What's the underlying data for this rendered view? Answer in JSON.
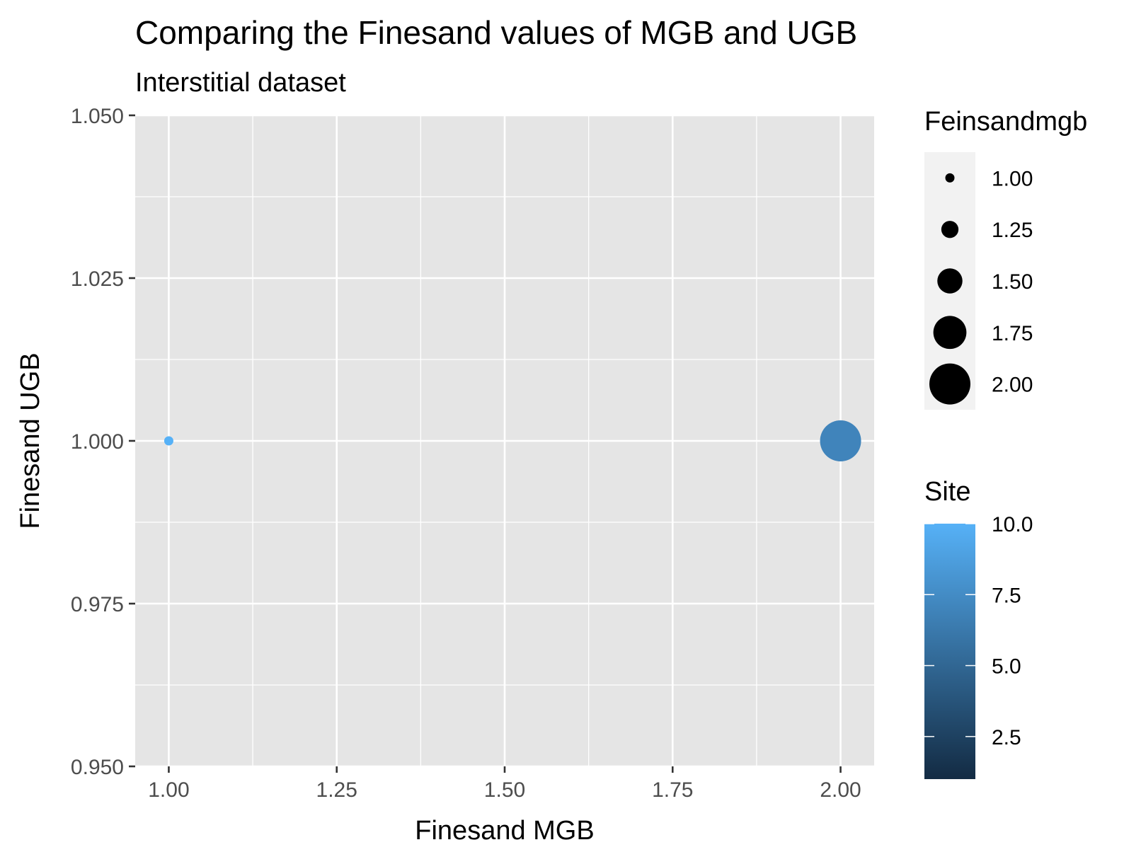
{
  "chart_data": {
    "type": "scatter",
    "title": "Comparing the Finesand values of MGB and UGB",
    "subtitle": "Interstitial dataset",
    "xlabel": "Finesand MGB",
    "ylabel": "Finesand UGB",
    "xlim": [
      0.95,
      2.05
    ],
    "ylim": [
      0.95,
      1.05
    ],
    "x_ticks": [
      1.0,
      1.25,
      1.5,
      1.75,
      2.0
    ],
    "x_tick_labels": [
      "1.00",
      "1.25",
      "1.50",
      "1.75",
      "2.00"
    ],
    "y_ticks": [
      0.95,
      0.975,
      1.0,
      1.025,
      1.05
    ],
    "y_tick_labels": [
      "0.950",
      "0.975",
      "1.000",
      "1.025",
      "1.050"
    ],
    "grid": true,
    "background_color": "#e5e5e5",
    "grid_color": "#ffffff",
    "points": [
      {
        "x": 1.0,
        "y": 1.0,
        "size_value": 1.0,
        "color_value": 10.0
      },
      {
        "x": 2.0,
        "y": 1.0,
        "size_value": 2.0,
        "color_value": 7.0
      }
    ],
    "size_legend": {
      "title": "Feinsandmgb",
      "values": [
        1.0,
        1.25,
        1.5,
        1.75,
        2.0
      ],
      "labels": [
        "1.00",
        "1.25",
        "1.50",
        "1.75",
        "2.00"
      ],
      "color": "#000000"
    },
    "color_legend": {
      "title": "Site",
      "type": "gradient",
      "range": [
        1.0,
        10.0
      ],
      "low_color": "#132b43",
      "high_color": "#56b1f7",
      "ticks": [
        2.5,
        5.0,
        7.5,
        10.0
      ],
      "tick_labels": [
        "2.5",
        "5.0",
        "7.5",
        "10.0"
      ]
    },
    "legend_position": "right"
  }
}
